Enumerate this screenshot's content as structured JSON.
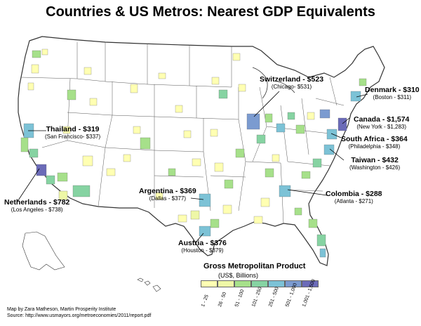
{
  "title": "Countries & US Metros: Nearest GDP Equivalents",
  "callouts": [
    {
      "id": "switzerland",
      "main": "Switzerland - $523",
      "sub": "(Chicago- $531)"
    },
    {
      "id": "denmark",
      "main": "Denmark - $310",
      "sub": "(Boston - $311)"
    },
    {
      "id": "thailand",
      "main": "Thailand - $319",
      "sub": "(San Francisco- $337)"
    },
    {
      "id": "canada",
      "main": "Canada - $1,574",
      "sub": "(New York - $1,283)"
    },
    {
      "id": "south-africa",
      "main": "South Africa - $364",
      "sub": "(Philadelphia - $348)"
    },
    {
      "id": "taiwan",
      "main": "Taiwan - $432",
      "sub": "(Washington - $426)"
    },
    {
      "id": "netherlands",
      "main": "Netherlands - $782",
      "sub": "(Los Angeles - $738)"
    },
    {
      "id": "argentina",
      "main": "Argentina - $369",
      "sub": "(Dallas - $377)"
    },
    {
      "id": "colombia",
      "main": "Colombia - $288",
      "sub": "(Atlanta - $271)"
    },
    {
      "id": "austria",
      "main": "Austria - $376",
      "sub": "(Houston - $379)"
    }
  ],
  "legend": {
    "title": "Gross Metropolitan Product",
    "subtitle": "(US$, Billions)",
    "bins": [
      {
        "label": "1 - 25",
        "color": "#ffffb2"
      },
      {
        "label": "26 - 50",
        "color": "#eef7a6"
      },
      {
        "label": "51 - 100",
        "color": "#a6e08a"
      },
      {
        "label": "101 - 250",
        "color": "#86d3a2"
      },
      {
        "label": "251 - 500",
        "color": "#7cc2d6"
      },
      {
        "label": "501 - 1,000",
        "color": "#7b9bd0"
      },
      {
        "label": "1,001 - 1,500",
        "color": "#6b6bb8"
      }
    ]
  },
  "credit": {
    "line1": "Map by Zara Matheson, Martin Prosperity Institute",
    "line2": "Source: http://www.usmayors.org/metroeconomies/2011/report.pdf"
  }
}
